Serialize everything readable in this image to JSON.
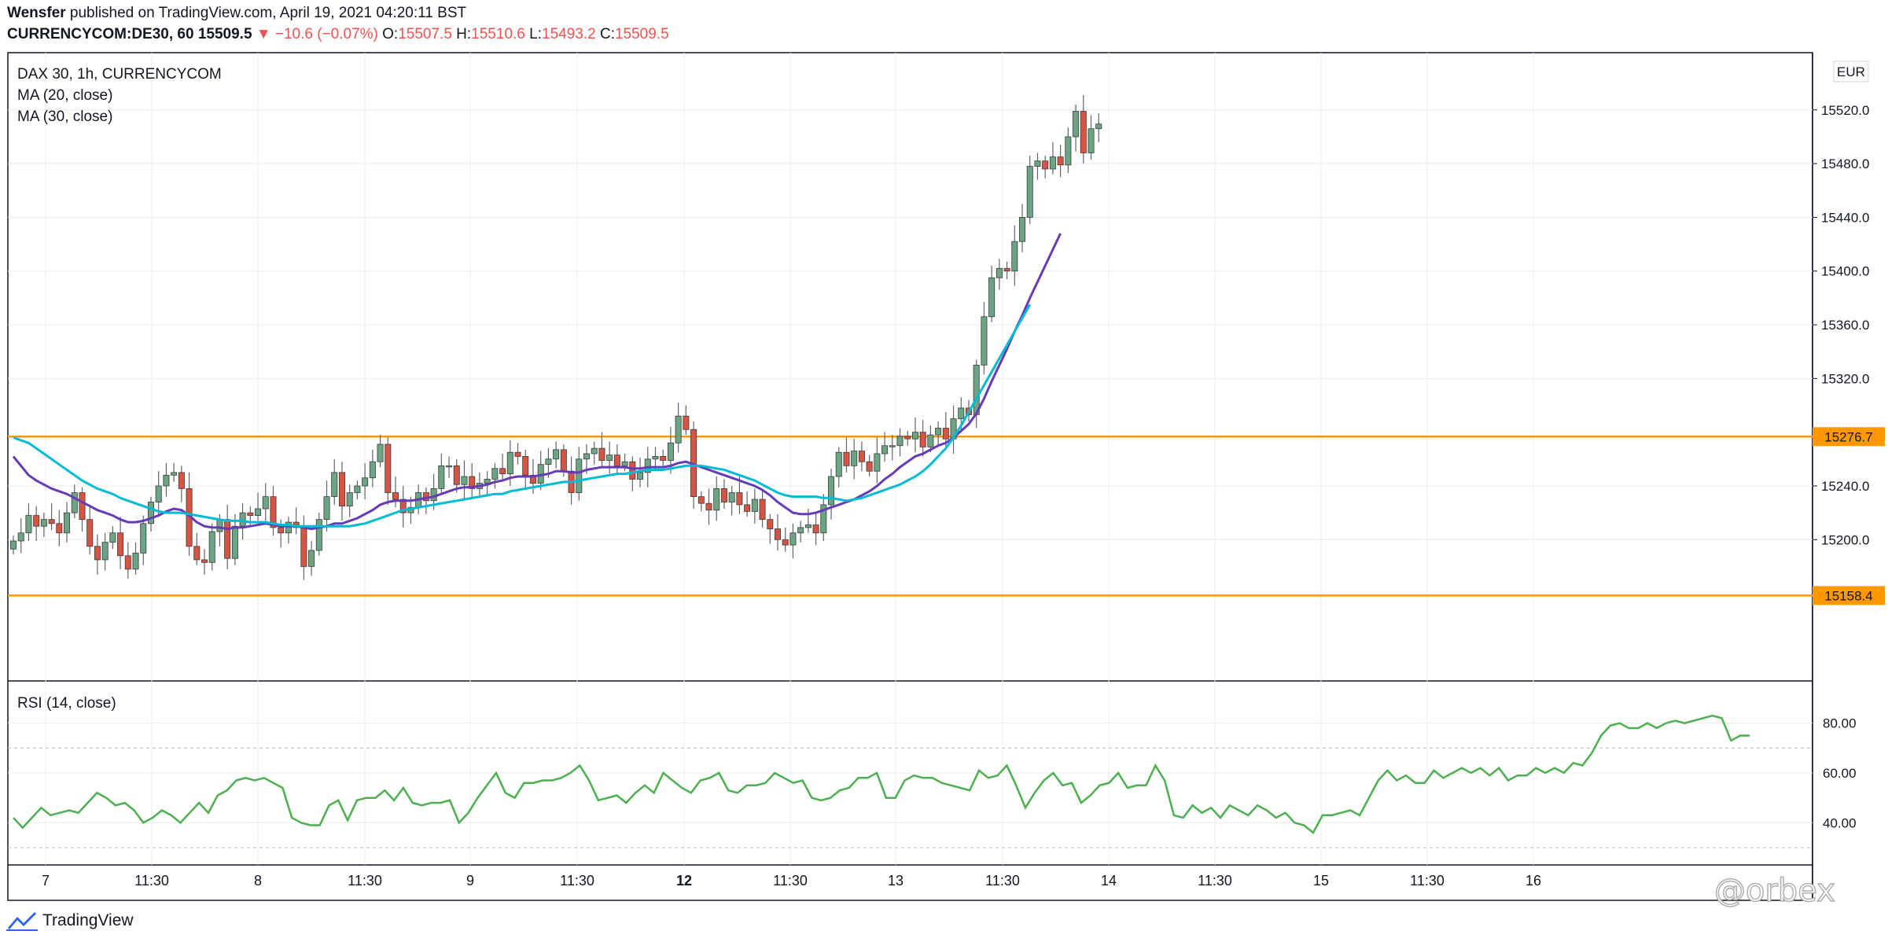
{
  "header": {
    "publisher": "Wensfer",
    "published_text": "published on TradingView.com, April 19, 2021 04:20:11 BST",
    "symbol": "CURRENCYCOM:DE30, 60",
    "price": "15509.5",
    "change": "▼ −10.6 (−0.07%)",
    "o_label": "O:",
    "o_value": "15507.5",
    "h_label": "H:",
    "h_value": "15510.6",
    "l_label": "L:",
    "l_value": "15493.2",
    "c_label": "C:",
    "c_value": "15509.5"
  },
  "legend": {
    "title": "DAX 30, 1h, CURRENCYCOM",
    "ma20": "MA (20, close)",
    "ma30": "MA (30, close)",
    "rsi": "RSI (14, close)"
  },
  "currency": "EUR",
  "footer": {
    "brand": "TradingView",
    "brand_icon": "tradingview-logo-icon",
    "watermark": "@orbex"
  },
  "colors": {
    "up": "#6ba583",
    "down": "#d75442",
    "wick": "#5e6470",
    "ma20": "#673ab7",
    "ma30": "#00bcd4",
    "level": "#ff9800",
    "rsi": "#4caf50",
    "grid": "#ececec"
  },
  "chart_data": [
    {
      "type": "candlestick",
      "title": "DAX 30, 1h, CURRENCYCOM",
      "ylim": [
        15110,
        15555
      ],
      "y_ticks": [
        "15520.0",
        "15480.0",
        "15440.0",
        "15400.0",
        "15360.0",
        "15320.0",
        "15240.0",
        "15200.0"
      ],
      "x_ticks": [
        "7",
        "11:30",
        "8",
        "11:30",
        "9",
        "11:30",
        "12",
        "11:30",
        "13",
        "11:30",
        "14",
        "11:30",
        "15",
        "11:30",
        "16"
      ],
      "x_ticks_bold": [
        "12"
      ],
      "horizontal_levels": [
        {
          "value": 15276.7,
          "label": "15276.7"
        },
        {
          "value": 15158.4,
          "label": "15158.4"
        }
      ],
      "close": [
        15199,
        15205,
        15218,
        15210,
        15215,
        15212,
        15205,
        15220,
        15235,
        15215,
        15195,
        15185,
        15198,
        15205,
        15188,
        15178,
        15190,
        15212,
        15228,
        15240,
        15248,
        15250,
        15238,
        15195,
        15185,
        15183,
        15206,
        15215,
        15186,
        15210,
        15220,
        15218,
        15223,
        15232,
        15209,
        15205,
        15213,
        15209,
        15180,
        15192,
        15215,
        15232,
        15250,
        15225,
        15235,
        15240,
        15246,
        15258,
        15271,
        15235,
        15230,
        15220,
        15224,
        15235,
        15229,
        15238,
        15255,
        15255,
        15241,
        15247,
        15238,
        15242,
        15245,
        15253,
        15249,
        15265,
        15262,
        15248,
        15242,
        15256,
        15260,
        15267,
        15251,
        15235,
        15260,
        15264,
        15268,
        15259,
        15263,
        15255,
        15258,
        15245,
        15250,
        15260,
        15262,
        15259,
        15272,
        15292,
        15282,
        15232,
        15227,
        15222,
        15238,
        15228,
        15235,
        15226,
        15221,
        15230,
        15215,
        15208,
        15200,
        15196,
        15205,
        15209,
        15211,
        15205,
        15226,
        15247,
        15265,
        15255,
        15266,
        15258,
        15251,
        15264,
        15270,
        15270,
        15277,
        15275,
        15280,
        15269,
        15278,
        15283,
        15275,
        15290,
        15298,
        15293,
        15330,
        15366,
        15395,
        15402,
        15400,
        15422,
        15440,
        15478,
        15482,
        15476,
        15485,
        15479,
        15500,
        15519,
        15488,
        15506,
        15509.5
      ],
      "ma20": [
        15262,
        15255,
        15248,
        15244,
        15241,
        15238,
        15236,
        15234,
        15231,
        15228,
        15225,
        15222,
        15220,
        15218,
        15215,
        15213,
        15213,
        15214,
        15216,
        15218,
        15221,
        15223,
        15222,
        15218,
        15213,
        15210,
        15209,
        15209,
        15208,
        15209,
        15209,
        15210,
        15211,
        15212,
        15211,
        15210,
        15210,
        15210,
        15209,
        15208,
        15209,
        15210,
        15212,
        15212,
        15214,
        15216,
        15219,
        15222,
        15226,
        15228,
        15229,
        15229,
        15229,
        15230,
        15231,
        15232,
        15234,
        15236,
        15238,
        15239,
        15239,
        15240,
        15241,
        15243,
        15244,
        15246,
        15247,
        15247,
        15247,
        15248,
        15249,
        15251,
        15251,
        15250,
        15250,
        15252,
        15253,
        15254,
        15254,
        15254,
        15254,
        15253,
        15253,
        15254,
        15254,
        15254,
        15255,
        15257,
        15258,
        15256,
        15254,
        15252,
        15250,
        15248,
        15246,
        15244,
        15242,
        15240,
        15237,
        15233,
        15228,
        15224,
        15220,
        15219,
        15219,
        15220,
        15222,
        15224,
        15226,
        15228,
        15230,
        15233,
        15236,
        15240,
        15245,
        15249,
        15254,
        15258,
        15262,
        15264,
        15267,
        15270,
        15272,
        15276,
        15281,
        15286,
        15294,
        15305,
        15318,
        15330,
        15342,
        15355,
        15367,
        15380,
        15392,
        15404,
        15416,
        15428
      ],
      "ma30": [
        15276,
        15274,
        15272,
        15268,
        15264,
        15260,
        15256,
        15252,
        15248,
        15244,
        15241,
        15238,
        15236,
        15234,
        15231,
        15229,
        15227,
        15225,
        15223,
        15221,
        15220,
        15220,
        15220,
        15219,
        15218,
        15217,
        15216,
        15215,
        15214,
        15214,
        15214,
        15213,
        15213,
        15213,
        15212,
        15211,
        15211,
        15210,
        15210,
        15210,
        15210,
        15210,
        15210,
        15210,
        15210,
        15211,
        15212,
        15214,
        15216,
        15218,
        15220,
        15222,
        15223,
        15224,
        15225,
        15226,
        15227,
        15228,
        15229,
        15230,
        15231,
        15232,
        15233,
        15234,
        15234,
        15236,
        15237,
        15238,
        15239,
        15240,
        15241,
        15242,
        15243,
        15243,
        15244,
        15245,
        15246,
        15247,
        15248,
        15249,
        15249,
        15250,
        15251,
        15252,
        15252,
        15252,
        15253,
        15254,
        15255,
        15255,
        15255,
        15254,
        15253,
        15252,
        15250,
        15248,
        15246,
        15244,
        15241,
        15238,
        15235,
        15233,
        15232,
        15232,
        15232,
        15232,
        15231,
        15231,
        15230,
        15229,
        15230,
        15231,
        15233,
        15235,
        15237,
        15239,
        15241,
        15244,
        15247,
        15251,
        15256,
        15262,
        15268,
        15276,
        15285,
        15295,
        15305,
        15315,
        15325,
        15335,
        15345,
        15355,
        15365,
        15375
      ]
    },
    {
      "type": "line",
      "title": "RSI (14, close)",
      "ylim": [
        30,
        90
      ],
      "y_ticks": [
        "80.00",
        "60.00",
        "40.00"
      ],
      "reference_lines": [
        70,
        30
      ],
      "values": [
        40,
        38,
        42,
        46,
        43,
        44,
        45,
        44,
        48,
        52,
        50,
        47,
        48,
        45,
        40,
        42,
        45,
        43,
        40,
        44,
        48,
        44,
        51,
        53,
        57,
        58,
        57,
        58,
        56,
        54,
        42,
        40,
        39,
        39,
        39,
        45,
        47,
        40,
        48,
        50,
        50,
        50,
        52,
        50,
        47,
        53,
        47,
        48,
        48,
        49,
        49,
        40,
        43,
        48,
        52,
        56,
        60,
        53,
        51,
        56,
        56,
        57,
        57,
        58,
        60,
        63,
        58,
        50,
        50,
        49,
        47,
        50,
        52,
        54,
        53,
        57,
        59,
        55,
        52,
        52,
        54,
        60,
        56,
        54,
        54,
        55,
        58,
        59,
        59,
        57,
        51,
        50,
        52,
        53,
        58,
        60,
        58,
        58,
        57,
        51,
        51,
        55,
        59,
        60,
        58,
        54,
        47,
        48,
        51,
        54,
        60,
        57,
        54,
        52,
        50,
        47,
        49,
        50,
        51,
        48,
        48,
        46,
        52,
        54,
        48,
        46,
        44,
        58,
        53,
        57,
        51,
        48,
        47,
        50,
        53,
        55,
        58,
        57,
        53,
        63,
        58,
        52,
        55,
        56,
        57,
        60,
        59,
        58,
        60,
        58,
        61,
        58,
        62,
        59,
        56,
        60,
        60,
        62,
        63,
        61,
        55,
        60,
        58,
        59,
        60,
        61,
        60,
        58,
        56,
        58,
        60,
        58,
        59,
        58,
        55,
        57,
        62,
        60,
        56,
        54,
        50,
        46,
        47,
        46,
        44,
        45,
        42,
        43,
        40,
        42,
        44,
        43,
        41,
        40,
        38,
        36,
        35,
        43,
        44,
        45,
        50,
        55,
        58,
        60,
        56,
        57,
        60,
        58,
        57,
        63,
        62,
        60,
        62,
        60,
        62,
        59,
        58,
        65,
        62,
        56,
        60,
        60,
        62,
        62,
        61,
        65,
        64,
        60,
        62,
        63,
        62,
        67,
        69,
        75,
        79,
        80,
        78,
        78,
        80,
        78,
        80,
        81,
        78,
        80,
        81,
        82,
        83,
        75,
        72,
        74,
        75,
        74
      ],
      "rsi_final": [
        42,
        38,
        42,
        46,
        43,
        44,
        45,
        44,
        48,
        52,
        50,
        47,
        48,
        45,
        40,
        42,
        45,
        43,
        40,
        44,
        48,
        44,
        51,
        53,
        57,
        58,
        57,
        58,
        56,
        54,
        42,
        40,
        39,
        39,
        47,
        49,
        41,
        49,
        50,
        50,
        53,
        49,
        54,
        48,
        47,
        48,
        48,
        49,
        40,
        44,
        50,
        55,
        60,
        52,
        50,
        56,
        56,
        57,
        57,
        58,
        60,
        63,
        57,
        49,
        50,
        51,
        48,
        52,
        55,
        52,
        60,
        57,
        54,
        52,
        57,
        58,
        60,
        53,
        52,
        55,
        55,
        56,
        60,
        58,
        56,
        57,
        50,
        49,
        50,
        53,
        54,
        58,
        58,
        60,
        50,
        50,
        57,
        59,
        58,
        58,
        56,
        55,
        54,
        53,
        61,
        58,
        59,
        63,
        55,
        46,
        52,
        57,
        60,
        55,
        56,
        48,
        51,
        55,
        56,
        60,
        54,
        55,
        55,
        63,
        57,
        43,
        42,
        47,
        44,
        46,
        42,
        47,
        45,
        43,
        47,
        45,
        42,
        44,
        40,
        39,
        36,
        43,
        43,
        44,
        45,
        43,
        50,
        57,
        61,
        57,
        59,
        56,
        56,
        61,
        58,
        60,
        62,
        60,
        62,
        59,
        62,
        57,
        59,
        59,
        62,
        60,
        62,
        60,
        64,
        63,
        68,
        75,
        79,
        80,
        78,
        78,
        80,
        78,
        80,
        81,
        80,
        81,
        82,
        83,
        82,
        73,
        75,
        75
      ]
    }
  ]
}
